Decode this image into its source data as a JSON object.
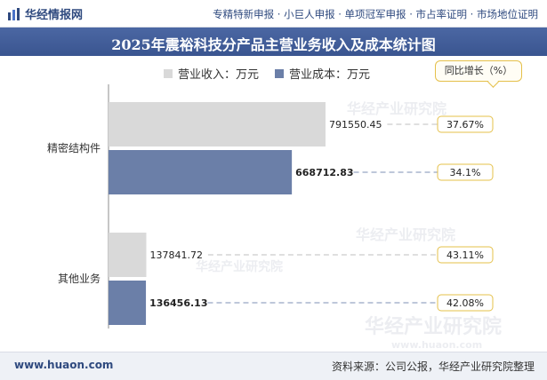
{
  "header": {
    "logo_text": "华经情报网",
    "services": "专精特新申报 · 小巨人申报 · 单项冠军申报 · 市占率证明 · 市场地位证明"
  },
  "title": "2025年震裕科技分产品主营业务收入及成本统计图",
  "legend": {
    "revenue_label": "营业收入：万元",
    "cost_label": "营业成本：万元",
    "growth_label": "同比增长（%）"
  },
  "colors": {
    "revenue": "#d9d9d9",
    "cost": "#6b7fa8",
    "title_bg": "#3b5998",
    "growth_border": "#e5c04a"
  },
  "chart_data": {
    "type": "bar",
    "orientation": "horizontal",
    "title": "2025年震裕科技分产品主营业务收入及成本统计图",
    "categories": [
      "精密结构件",
      "其他业务"
    ],
    "series": [
      {
        "name": "营业收入：万元",
        "values": [
          791550.45,
          137841.72
        ],
        "labels": [
          "791550.45",
          "137841.72"
        ],
        "growth": [
          "37.67%",
          "43.11%"
        ]
      },
      {
        "name": "营业成本：万元",
        "values": [
          668712.83,
          136456.13
        ],
        "labels": [
          "668712.83",
          "136456.13"
        ],
        "growth": [
          "34.1%",
          "42.08%"
        ]
      }
    ],
    "xlim": [
      0,
      950000
    ],
    "grid": false,
    "legend_position": "top"
  },
  "watermarks": [
    "华经产业研究院",
    "www.huaon.com"
  ],
  "footer": {
    "website": "www.huaon.com",
    "source": "资料来源：公司公报，华经产业研究院整理"
  }
}
